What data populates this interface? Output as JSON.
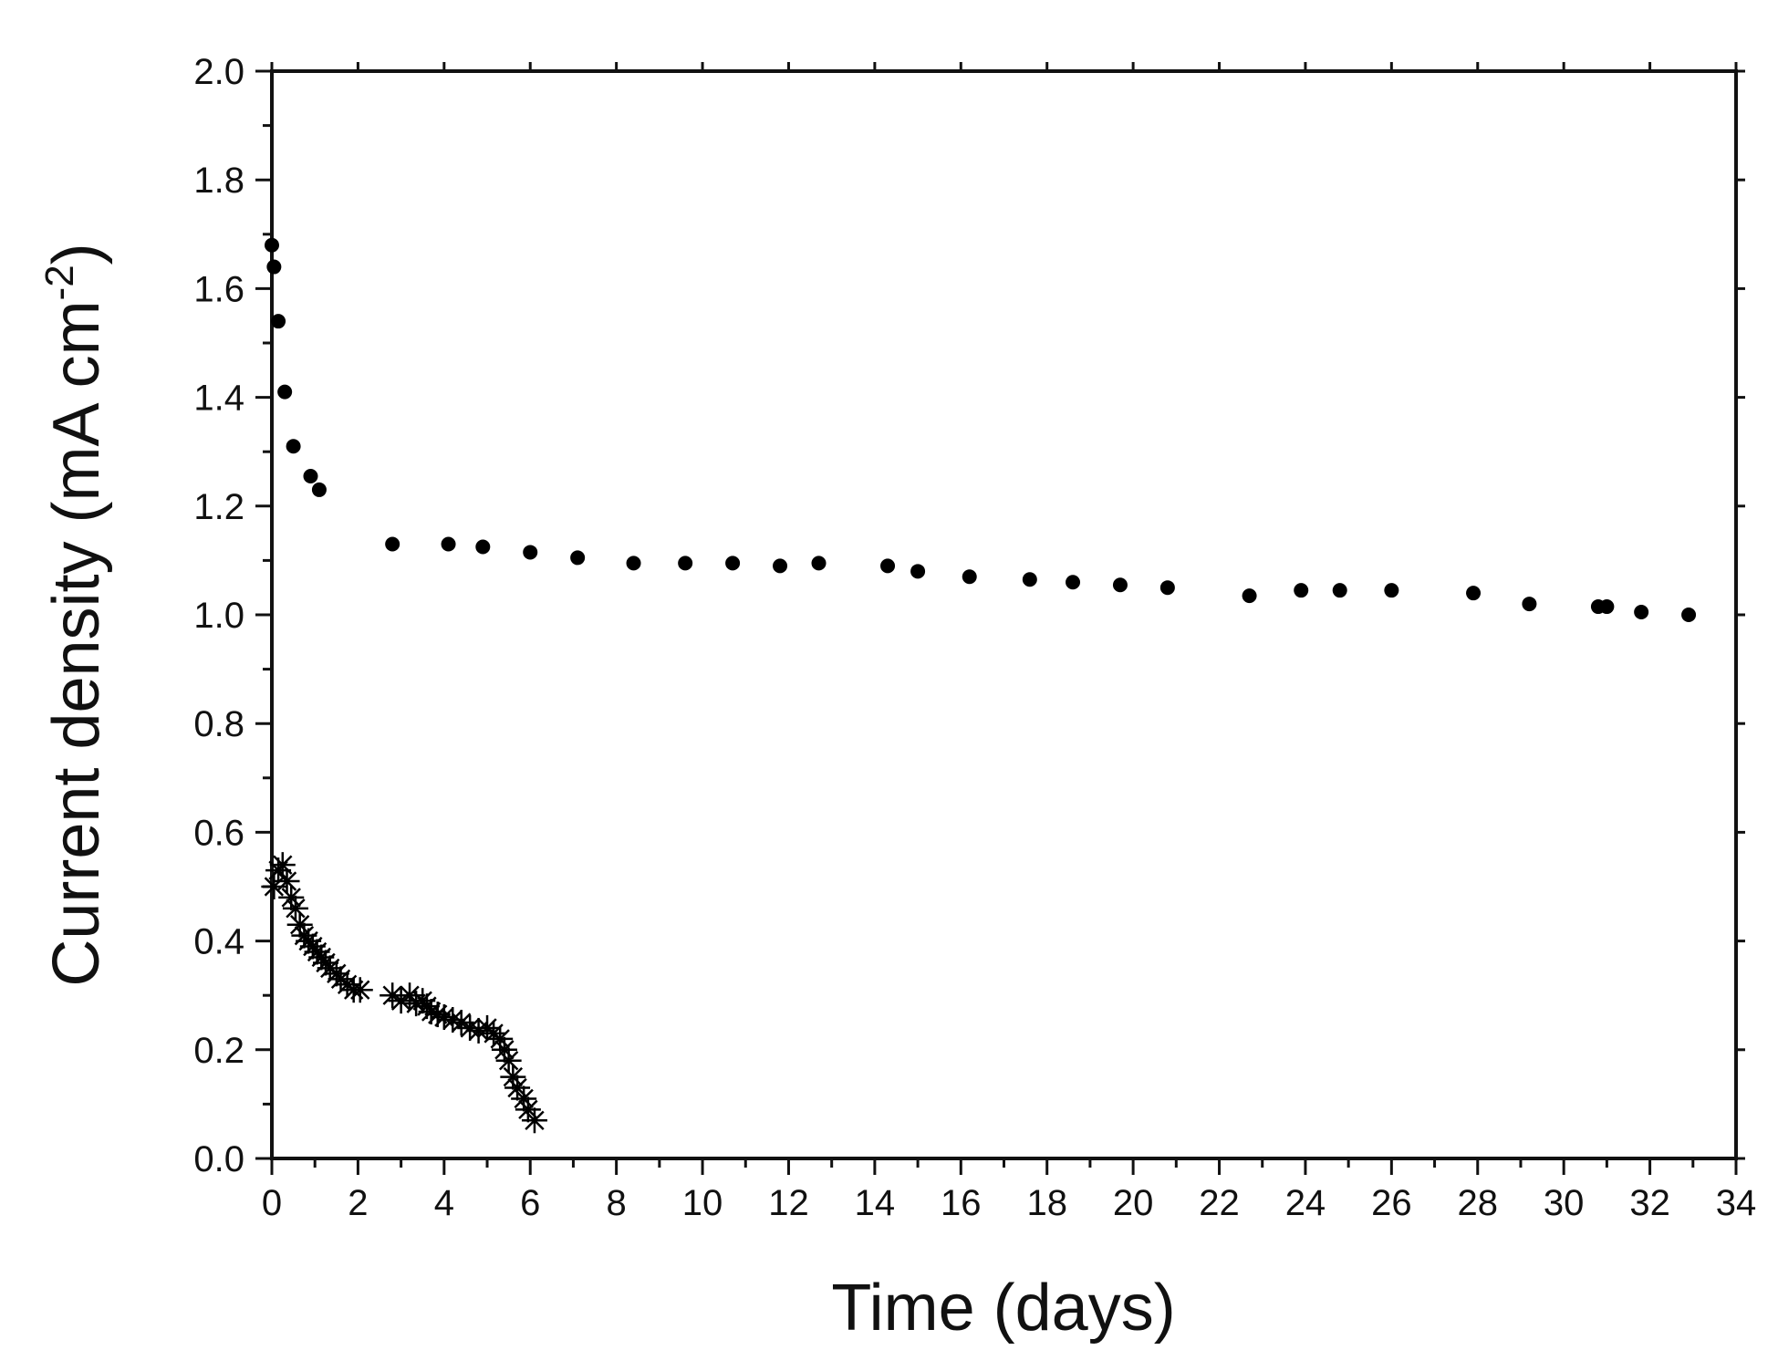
{
  "chart_data": {
    "type": "scatter",
    "title": "",
    "xlabel": "Time (days)",
    "ylabel": {
      "main": "Current density (mA cm",
      "superscript": "-2",
      "close": ")"
    },
    "xlim": [
      0,
      34
    ],
    "ylim": [
      0,
      2.0
    ],
    "x_ticks": [
      "0",
      "2",
      "4",
      "6",
      "8",
      "10",
      "12",
      "14",
      "16",
      "18",
      "20",
      "22",
      "24",
      "26",
      "28",
      "30",
      "32",
      "34"
    ],
    "y_ticks": [
      "0.0",
      "0.2",
      "0.4",
      "0.6",
      "0.8",
      "1.0",
      "1.2",
      "1.4",
      "1.6",
      "1.8",
      "2.0"
    ],
    "grid": false,
    "legend": "none",
    "series": [
      {
        "marker": "circle",
        "color": "#000000",
        "x": [
          0.0,
          0.05,
          0.15,
          0.3,
          0.5,
          0.9,
          1.1,
          2.8,
          4.1,
          4.9,
          6.0,
          7.1,
          8.4,
          9.6,
          10.7,
          11.8,
          12.7,
          14.3,
          15.0,
          16.2,
          17.6,
          18.6,
          19.7,
          20.8,
          22.7,
          23.9,
          24.8,
          26.0,
          27.9,
          29.2,
          30.8,
          31.0,
          31.8,
          32.9
        ],
        "y": [
          1.68,
          1.64,
          1.54,
          1.41,
          1.31,
          1.255,
          1.23,
          1.13,
          1.13,
          1.125,
          1.115,
          1.105,
          1.095,
          1.095,
          1.095,
          1.09,
          1.095,
          1.09,
          1.08,
          1.07,
          1.065,
          1.06,
          1.055,
          1.05,
          1.035,
          1.045,
          1.045,
          1.045,
          1.04,
          1.02,
          1.015,
          1.015,
          1.005,
          1.0
        ]
      },
      {
        "marker": "asterisk",
        "color": "#000000",
        "x": [
          0.05,
          0.15,
          0.25,
          0.35,
          0.45,
          0.55,
          0.65,
          0.75,
          0.85,
          0.95,
          1.05,
          1.15,
          1.25,
          1.35,
          1.5,
          1.6,
          1.75,
          1.9,
          2.05,
          2.8,
          3.0,
          3.2,
          3.35,
          3.5,
          3.6,
          3.7,
          3.85,
          4.0,
          4.2,
          4.4,
          4.6,
          4.8,
          5.0,
          5.15,
          5.3,
          5.4,
          5.5,
          5.6,
          5.7,
          5.85,
          5.95,
          6.1
        ],
        "y": [
          0.5,
          0.53,
          0.54,
          0.51,
          0.48,
          0.46,
          0.43,
          0.41,
          0.4,
          0.39,
          0.38,
          0.37,
          0.36,
          0.35,
          0.34,
          0.33,
          0.32,
          0.31,
          0.31,
          0.3,
          0.29,
          0.3,
          0.285,
          0.29,
          0.28,
          0.27,
          0.265,
          0.26,
          0.255,
          0.25,
          0.24,
          0.235,
          0.24,
          0.23,
          0.22,
          0.2,
          0.18,
          0.15,
          0.13,
          0.11,
          0.09,
          0.07
        ]
      }
    ]
  }
}
